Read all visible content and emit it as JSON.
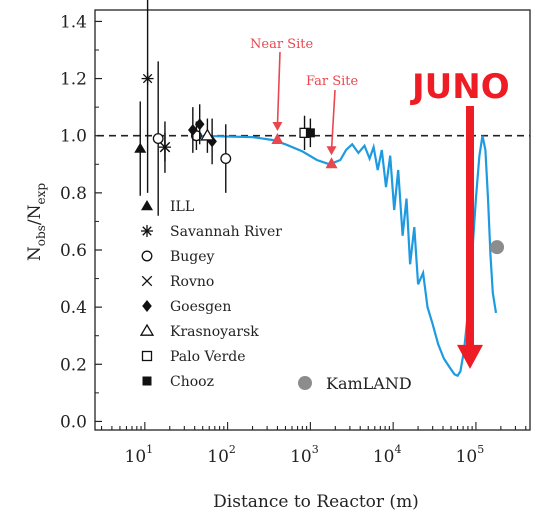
{
  "chart_data": {
    "type": "scatter",
    "ylabel": "Nobs/Nexp",
    "ylabel_main": "N",
    "ylabel_sub1": "obs",
    "ylabel_slash": "/N",
    "ylabel_sub2": "exp",
    "xlabel": "Distance to Reactor (m)",
    "x_scale": "log",
    "xlim": [
      2.5,
      450000
    ],
    "ylim": [
      -0.03,
      1.44
    ],
    "yticks": [
      0.0,
      0.2,
      0.4,
      0.6,
      0.8,
      1.0,
      1.2,
      1.4
    ],
    "ytick_labels": [
      "0.0",
      "0.2",
      "0.4",
      "0.6",
      "0.8",
      "1.0",
      "1.2",
      "1.4"
    ],
    "xtick_exponents": [
      "1",
      "2",
      "3",
      "4",
      "5"
    ],
    "xtick_base": "10",
    "reference_line": 1.0,
    "series": [
      {
        "name": "ILL",
        "marker": "filled-triangle",
        "points": [
          {
            "x": 8.8,
            "y": 0.955,
            "err": 0.165
          }
        ]
      },
      {
        "name": "Savannah River",
        "marker": "asterisk",
        "points": [
          {
            "x": 10.8,
            "y": 1.2,
            "err": 0.4
          },
          {
            "x": 17.5,
            "y": 0.96,
            "err": 0.09
          }
        ]
      },
      {
        "name": "Bugey",
        "marker": "open-circle",
        "points": [
          {
            "x": 14.5,
            "y": 0.99,
            "err": 0.27
          },
          {
            "x": 42,
            "y": 1.0,
            "err": 0.05
          },
          {
            "x": 95,
            "y": 0.92,
            "err": 0.12
          }
        ]
      },
      {
        "name": "Rovno",
        "marker": "cross",
        "points": [
          {
            "x": 17.5,
            "y": 0.96,
            "err": 0.05
          }
        ]
      },
      {
        "name": "Goesgen",
        "marker": "filled-diamond",
        "points": [
          {
            "x": 38,
            "y": 1.02,
            "err": 0.08
          },
          {
            "x": 46,
            "y": 1.04,
            "err": 0.07
          },
          {
            "x": 65,
            "y": 0.98,
            "err": 0.08
          }
        ]
      },
      {
        "name": "Krasnoyarsk",
        "marker": "open-triangle",
        "points": [
          {
            "x": 57,
            "y": 1.0,
            "err": 0.06
          }
        ]
      },
      {
        "name": "Palo Verde",
        "marker": "open-square",
        "points": [
          {
            "x": 850,
            "y": 1.01,
            "err": 0.06
          }
        ]
      },
      {
        "name": "Chooz",
        "marker": "filled-square",
        "points": [
          {
            "x": 1000,
            "y": 1.01,
            "err": 0.05
          }
        ]
      }
    ],
    "legend_labels": [
      "ILL",
      "Savannah River",
      "Bugey",
      "Rovno",
      "Goesgen",
      "Krasnoyarsk",
      "Palo Verde",
      "Chooz"
    ],
    "kamland": {
      "label": "KamLAND",
      "x": 180000,
      "y": 0.61
    },
    "near_site": {
      "label": "Near Site",
      "x": 400,
      "y": 0.985
    },
    "far_site": {
      "label": "Far Site",
      "x": 1800,
      "y": 0.9
    },
    "juno": {
      "label": "JUNO",
      "x": 55000,
      "y": 0.17
    },
    "oscillation_curve": {
      "x": [
        40,
        200,
        350,
        500,
        800,
        1200,
        1700,
        2300,
        2700,
        3200,
        3800,
        4500,
        5200,
        5800,
        6500,
        7300,
        8200,
        9200,
        10300,
        11500,
        13000,
        14500,
        16000,
        18000,
        20000,
        23000,
        26000,
        30000,
        35000,
        41000,
        48000,
        55000,
        60000,
        65000,
        72000,
        80000,
        90000,
        100000,
        110000,
        120000,
        130000,
        140000,
        150000,
        160000,
        175000
      ],
      "y": [
        1.0,
        0.995,
        0.985,
        0.97,
        0.945,
        0.915,
        0.9,
        0.915,
        0.95,
        0.97,
        0.94,
        0.965,
        0.92,
        0.96,
        0.88,
        0.95,
        0.82,
        0.93,
        0.74,
        0.88,
        0.65,
        0.78,
        0.55,
        0.68,
        0.48,
        0.52,
        0.4,
        0.34,
        0.27,
        0.22,
        0.19,
        0.165,
        0.16,
        0.175,
        0.25,
        0.38,
        0.58,
        0.78,
        0.93,
        1.0,
        0.95,
        0.78,
        0.58,
        0.45,
        0.38
      ]
    }
  },
  "colors": {
    "curve": "#1e9be0",
    "site_marker": "#e8474f",
    "juno_arrow": "#ee1c25",
    "kamland": "#8c8c8c",
    "axis": "#222222"
  }
}
